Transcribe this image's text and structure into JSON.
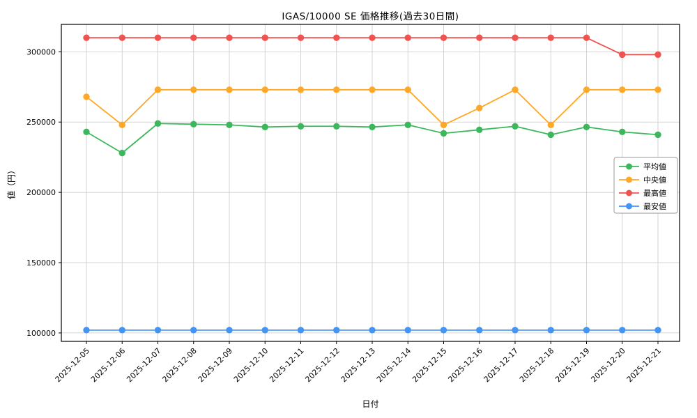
{
  "chart_data": {
    "type": "line",
    "title": "IGAS/10000 SE 価格推移(過去30日間)",
    "xlabel": "日付",
    "ylabel": "値（円）",
    "x": [
      "2025-12-05",
      "2025-12-06",
      "2025-12-07",
      "2025-12-08",
      "2025-12-09",
      "2025-12-10",
      "2025-12-11",
      "2025-12-12",
      "2025-12-13",
      "2025-12-14",
      "2025-12-15",
      "2025-12-16",
      "2025-12-17",
      "2025-12-18",
      "2025-12-19",
      "2025-12-20",
      "2025-12-21"
    ],
    "series": [
      {
        "key": "average",
        "name": "平均値",
        "color": "#3cb85c",
        "values": [
          243000,
          228000,
          249000,
          248500,
          248000,
          246500,
          247000,
          247000,
          246500,
          248000,
          242000,
          244500,
          247000,
          241000,
          246500,
          243000,
          241000
        ]
      },
      {
        "key": "median",
        "name": "中央値",
        "color": "#ffa726",
        "values": [
          268000,
          248000,
          273000,
          273000,
          273000,
          273000,
          273000,
          273000,
          273000,
          273000,
          248000,
          260000,
          273000,
          248000,
          273000,
          273000,
          273000
        ]
      },
      {
        "key": "max",
        "name": "最高値",
        "color": "#ef5350",
        "values": [
          310000,
          310000,
          310000,
          310000,
          310000,
          310000,
          310000,
          310000,
          310000,
          310000,
          310000,
          310000,
          310000,
          310000,
          310000,
          298000,
          298000
        ]
      },
      {
        "key": "min",
        "name": "最安値",
        "color": "#4295f5",
        "values": [
          102000,
          102000,
          102000,
          102000,
          102000,
          102000,
          102000,
          102000,
          102000,
          102000,
          102000,
          102000,
          102000,
          102000,
          102000,
          102000,
          102000
        ]
      }
    ],
    "ylim": [
      94000,
      319500
    ],
    "yticks": [
      100000,
      150000,
      200000,
      250000,
      300000
    ],
    "grid": true,
    "legend": {
      "position": "center-right",
      "entries": [
        "平均値",
        "中央値",
        "最高値",
        "最安値"
      ]
    },
    "colors": {
      "grid": "#c9c9c9",
      "axis": "#000000",
      "background": "#ffffff"
    }
  }
}
